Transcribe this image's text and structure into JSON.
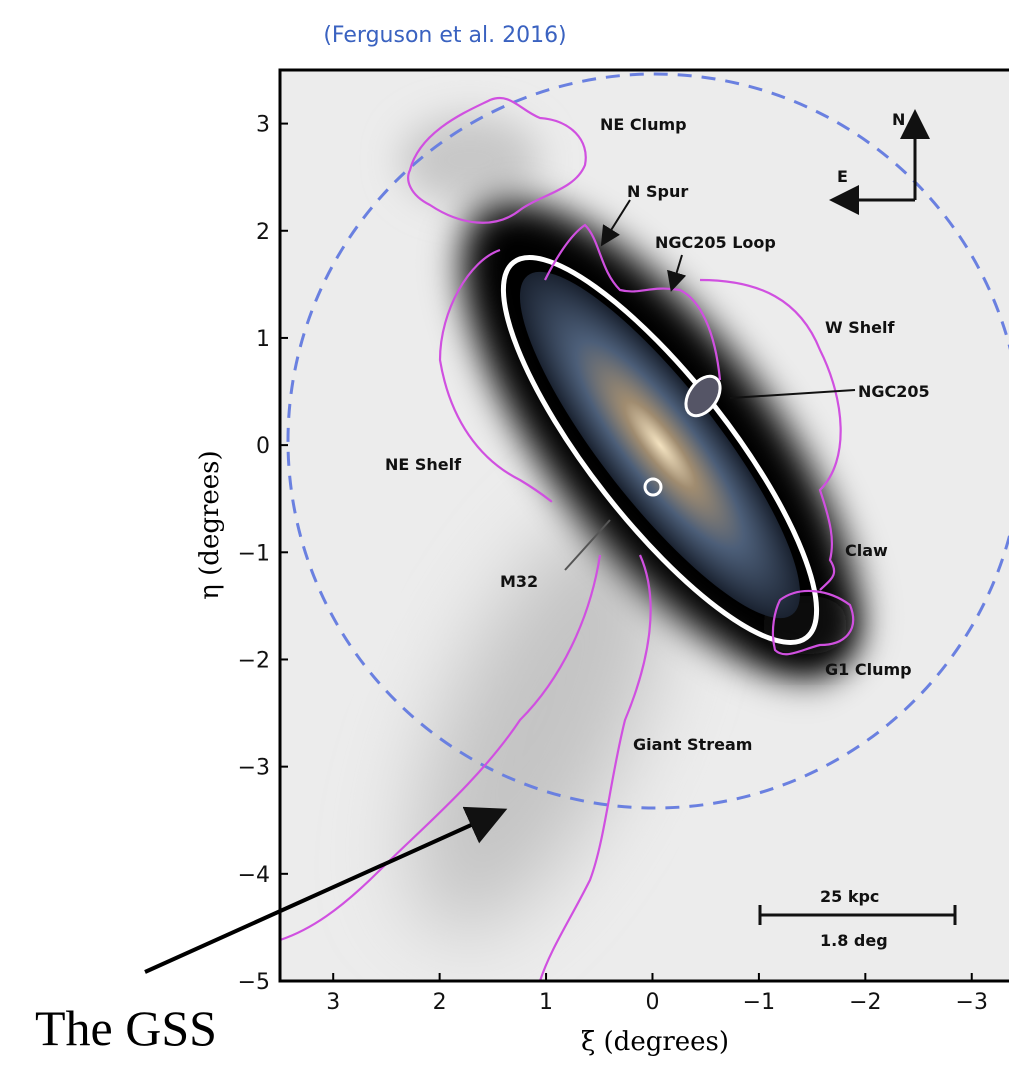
{
  "chart_data": {
    "type": "image",
    "title": "(Ferguson et al. 2016)",
    "xlabel": "ξ (degrees)",
    "ylabel": "η (degrees)",
    "xlim": [
      3.5,
      -3.35
    ],
    "ylim": [
      -5,
      3.5
    ],
    "xticks": [
      3,
      2,
      1,
      0,
      {
        "value": -1,
        "label": "−1"
      },
      {
        "value": -2,
        "label": "−2"
      },
      {
        "value": -3,
        "label": "−3"
      }
    ],
    "yticks": [
      3,
      2,
      1,
      0,
      {
        "value": -1,
        "label": "−1"
      },
      {
        "value": -2,
        "label": "−2"
      },
      {
        "value": -3,
        "label": "−3"
      },
      {
        "value": -4,
        "label": "−4"
      },
      {
        "value": -5,
        "label": "−5"
      }
    ],
    "annotations": [
      "NE Clump",
      "N Spur",
      "NGC205 Loop",
      "W Shelf",
      "NGC205",
      "NE Shelf",
      "Claw",
      "M32",
      "G1 Clump",
      "Giant Stream",
      "25 kpc",
      "1.8 deg",
      "N",
      "E"
    ],
    "callout": "The GSS"
  }
}
